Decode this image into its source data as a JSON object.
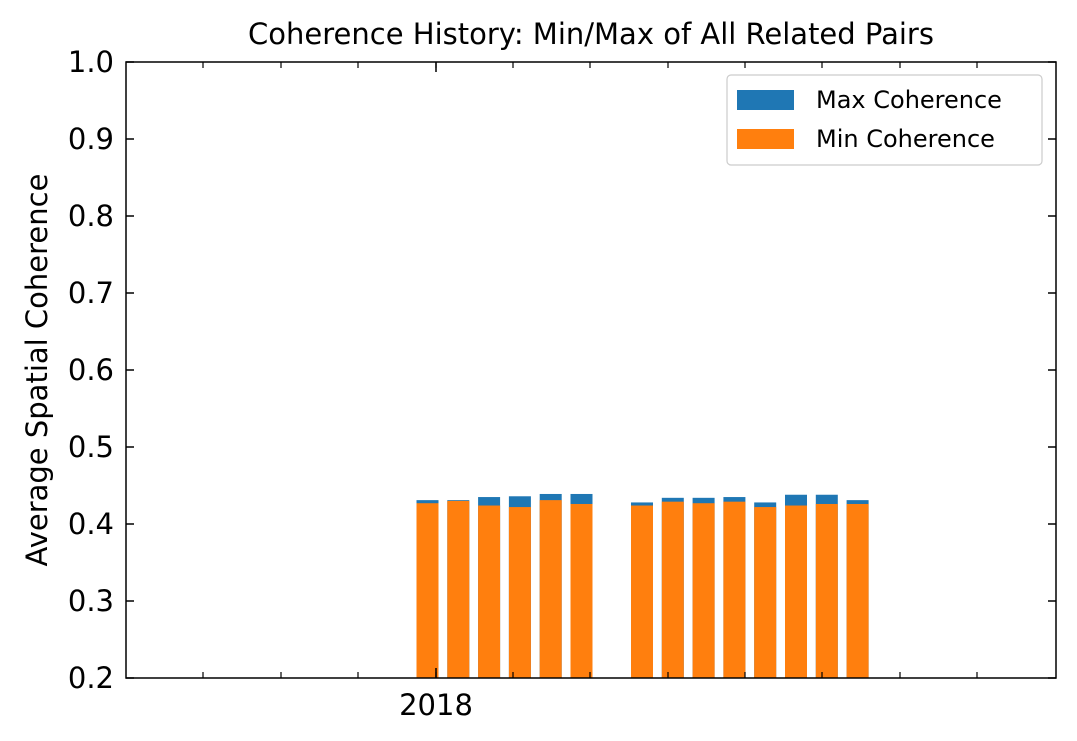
{
  "chart_data": {
    "type": "bar",
    "title": "Coherence History: Min/Max of All Related Pairs",
    "xlabel": "",
    "ylabel": "Average Spatial Coherence",
    "ylim": [
      0.2,
      1.0
    ],
    "yticks": [
      "0.2",
      "0.3",
      "0.4",
      "0.5",
      "0.6",
      "0.7",
      "0.8",
      "0.9",
      "1.0"
    ],
    "xticks": [
      "2018"
    ],
    "bar_groups": [
      6,
      8
    ],
    "series": [
      {
        "name": "Max Coherence",
        "color": "#1f77b4",
        "values": [
          0.431,
          0.431,
          0.435,
          0.436,
          0.439,
          0.439,
          0.428,
          0.434,
          0.434,
          0.435,
          0.428,
          0.438,
          0.438,
          0.431
        ]
      },
      {
        "name": "Min Coherence",
        "color": "#ff7f0e",
        "values": [
          0.427,
          0.43,
          0.424,
          0.422,
          0.431,
          0.426,
          0.424,
          0.429,
          0.427,
          0.429,
          0.422,
          0.424,
          0.426,
          0.426
        ]
      }
    ],
    "legend_position": "top-right",
    "grid": false
  }
}
